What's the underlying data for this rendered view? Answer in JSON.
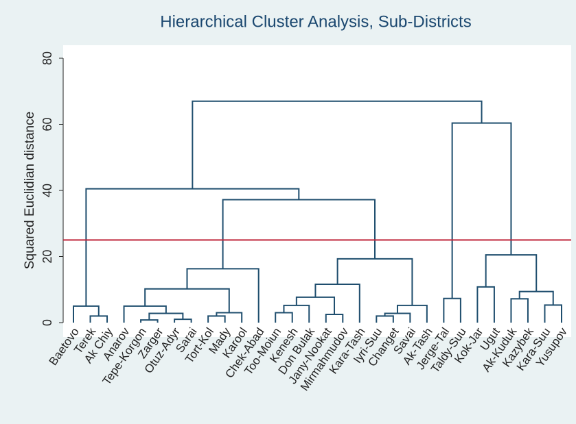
{
  "chart_data": {
    "type": "dendrogram",
    "title": "Hierarchical Cluster Analysis, Sub-Districts",
    "y_label": "Squared Euclidian distance",
    "ylim": [
      0,
      80
    ],
    "yticks": [
      0,
      20,
      40,
      60,
      80
    ],
    "color": "#1f4e6e",
    "hline": 25,
    "hline_color": "#c0283c",
    "tree": {
      "height": 67,
      "children": [
        {
          "height": 40.5,
          "children": [
            {
              "height": 5,
              "children": [
                "Baetovo",
                {
                  "height": 2,
                  "children": [
                    "Terek",
                    "Ak Chiy"
                  ]
                }
              ]
            },
            {
              "height": 37.2,
              "children": [
                {
                  "height": 16.3,
                  "children": [
                    {
                      "height": 10.2,
                      "children": [
                        {
                          "height": 5,
                          "children": [
                            "Anarov",
                            {
                              "height": 2.8,
                              "children": [
                                {
                                  "height": 0.8,
                                  "children": [
                                    "Tepe-Korgon",
                                    "Zarger"
                                  ]
                                },
                                {
                                  "height": 1,
                                  "children": [
                                    "Otuz-Adyr",
                                    "Sarai"
                                  ]
                                }
                              ]
                            }
                          ]
                        },
                        {
                          "height": 3,
                          "children": [
                            {
                              "height": 2,
                              "children": [
                                "Tort-Kol",
                                "Mady"
                              ]
                            },
                            "Karool"
                          ]
                        }
                      ]
                    },
                    "Chek-Abad"
                  ]
                },
                {
                  "height": 19.3,
                  "children": [
                    {
                      "height": 11.6,
                      "children": [
                        {
                          "height": 7.7,
                          "children": [
                            {
                              "height": 5.2,
                              "children": [
                                {
                                  "height": 3,
                                  "children": [
                                    "Too-Moiun",
                                    "Kenesh"
                                  ]
                                },
                                "Don Bulak"
                              ]
                            },
                            {
                              "height": 2.5,
                              "children": [
                                "Jany-Nookat",
                                "Mirmahmudov"
                              ]
                            }
                          ]
                        },
                        "Kara-Tash"
                      ]
                    },
                    {
                      "height": 5.2,
                      "children": [
                        {
                          "height": 2.8,
                          "children": [
                            {
                              "height": 2,
                              "children": [
                                "Iyri-Suu",
                                "Changet"
                              ]
                            },
                            "Savai"
                          ]
                        },
                        "Ak-Tash"
                      ]
                    }
                  ]
                }
              ]
            }
          ]
        },
        {
          "height": 60.4,
          "children": [
            {
              "height": 7.3,
              "children": [
                "Jerge-Tal",
                "Taldy-Suu"
              ]
            },
            {
              "height": 20.5,
              "children": [
                {
                  "height": 10.8,
                  "children": [
                    "Kok-Jar",
                    "Ugut"
                  ]
                },
                {
                  "height": 9.4,
                  "children": [
                    {
                      "height": 7.2,
                      "children": [
                        "Ak-Kuduk",
                        "Kazybek"
                      ]
                    },
                    {
                      "height": 5.3,
                      "children": [
                        "Kara-Suu",
                        "Yusupov"
                      ]
                    }
                  ]
                }
              ]
            }
          ]
        }
      ]
    }
  }
}
